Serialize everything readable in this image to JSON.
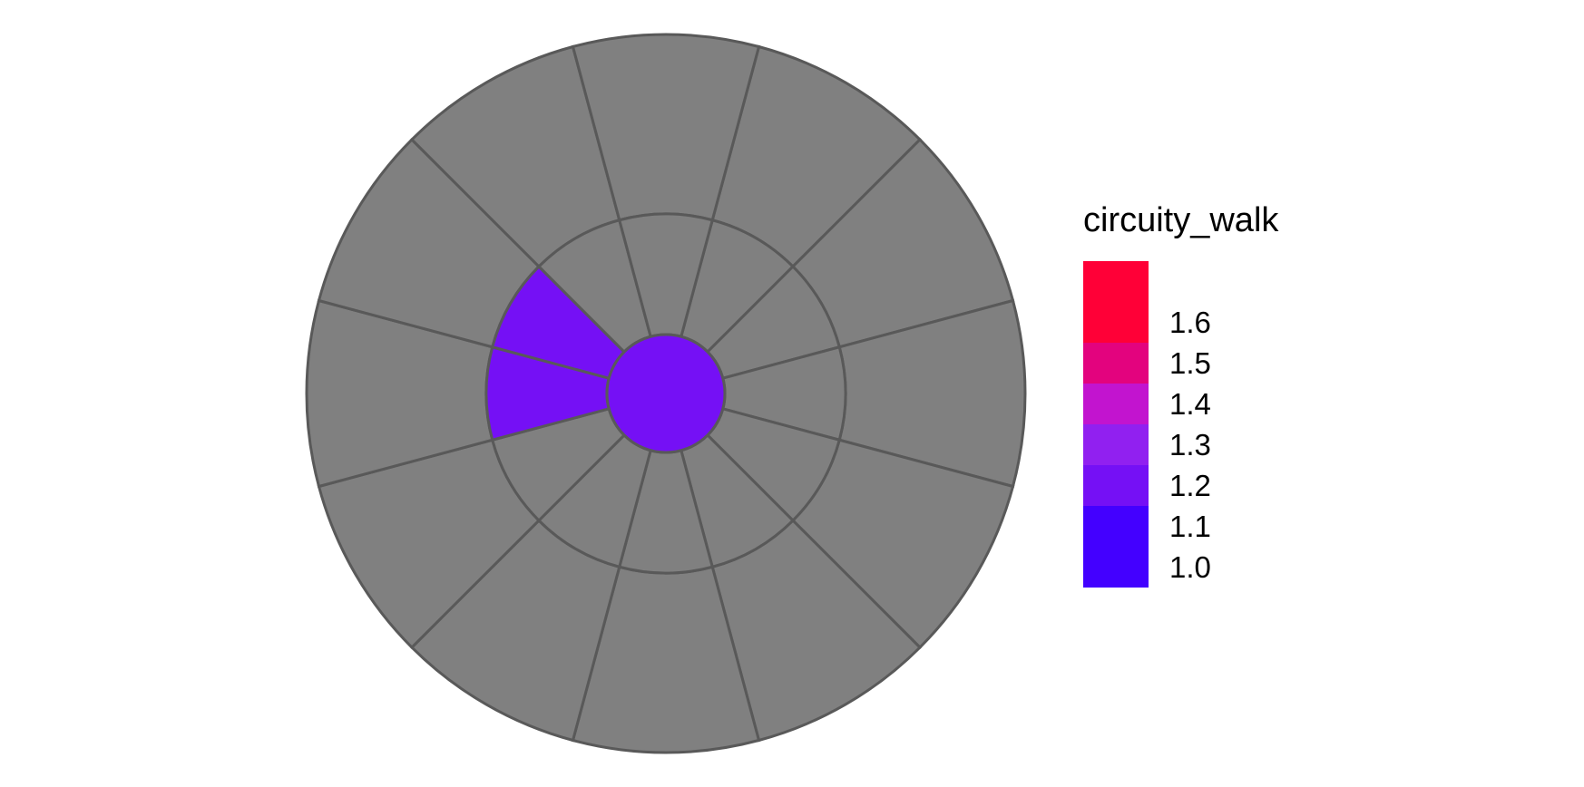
{
  "chart_data": {
    "type": "heatmap",
    "subtype": "polar sector grid",
    "rings": [
      "inner",
      "middle",
      "outer"
    ],
    "sectors_per_ring": 12,
    "no_data_color": "#808080",
    "border_color": "#595959",
    "cells": [
      {
        "ring": "inner",
        "sector": "all",
        "value": 1.15,
        "color": "#7510F5"
      },
      {
        "ring": "middle",
        "sector": 8,
        "value": 1.15,
        "color": "#7510F5"
      },
      {
        "ring": "middle",
        "sector": 9,
        "value": 1.15,
        "color": "#7510F5"
      }
    ],
    "legend": {
      "title": "circuity_walk",
      "labels": [
        "1.6",
        "1.5",
        "1.4",
        "1.3",
        "1.2",
        "1.1",
        "1.0"
      ],
      "bins": [
        {
          "range": [
            1.55,
            1.65
          ],
          "color": "#FF0037"
        },
        {
          "range": [
            1.45,
            1.55
          ],
          "color": "#E3037E"
        },
        {
          "range": [
            1.35,
            1.45
          ],
          "color": "#C214CF"
        },
        {
          "range": [
            1.25,
            1.35
          ],
          "color": "#9120F0"
        },
        {
          "range": [
            1.15,
            1.25
          ],
          "color": "#7510F5"
        },
        {
          "range": [
            0.95,
            1.15
          ],
          "color": "#4300FF"
        }
      ]
    }
  }
}
